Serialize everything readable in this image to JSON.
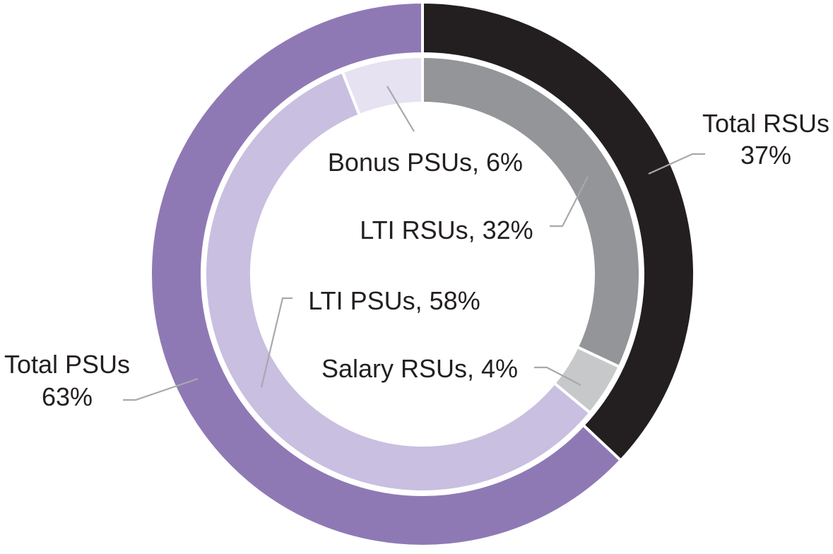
{
  "chart_data": {
    "type": "pie",
    "style": "double-donut",
    "outer_ring": [
      {
        "name": "Total RSUs",
        "value_label": "37%",
        "value": 37,
        "color": "#231f20"
      },
      {
        "name": "Total PSUs",
        "value_label": "63%",
        "value": 63,
        "color": "#8f79b5"
      }
    ],
    "inner_ring": [
      {
        "text": "LTI RSUs, 32%",
        "value": 32,
        "color": "#939598"
      },
      {
        "text": "Salary RSUs, 4%",
        "value": 4,
        "color": "#c7c8ca"
      },
      {
        "text": "LTI PSUs, 58%",
        "value": 58,
        "color": "#c9bfe0"
      },
      {
        "text": "Bonus PSUs, 6%",
        "value": 6,
        "color": "#e7e2f2"
      }
    ]
  }
}
